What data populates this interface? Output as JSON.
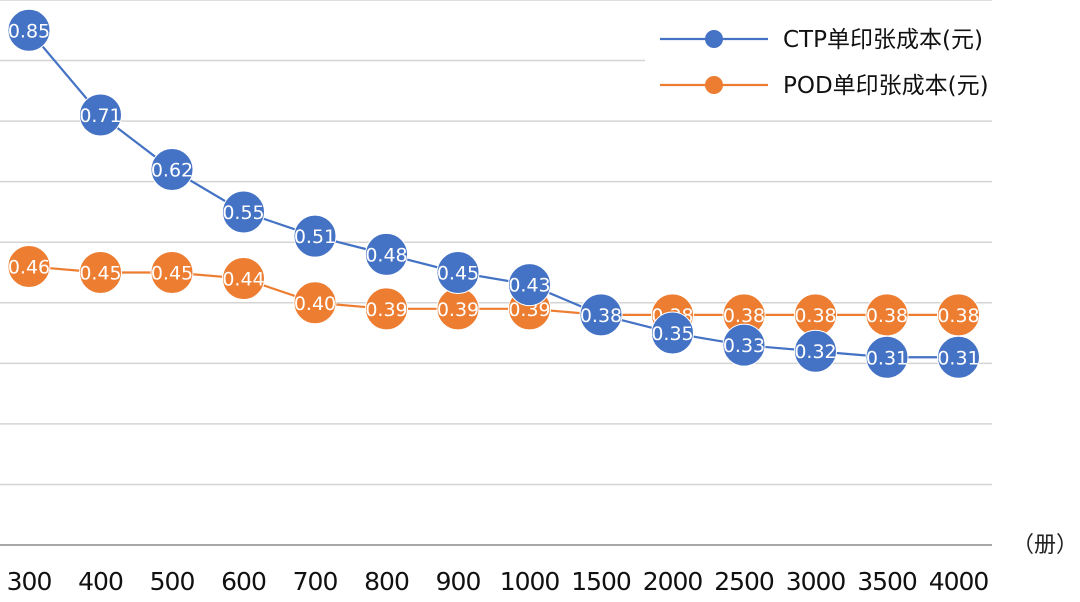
{
  "chart_data": {
    "type": "line",
    "categories": [
      "300",
      "400",
      "500",
      "600",
      "700",
      "800",
      "900",
      "1000",
      "1500",
      "2000",
      "2500",
      "3000",
      "3500",
      "4000"
    ],
    "series": [
      {
        "name": "CTP单印张成本(元)",
        "color": "#4472C4",
        "values": [
          0.85,
          0.71,
          0.62,
          0.55,
          0.51,
          0.48,
          0.45,
          0.43,
          0.38,
          0.35,
          0.33,
          0.32,
          0.31,
          0.31
        ]
      },
      {
        "name": "POD单印张成本(元)",
        "color": "#ED7D31",
        "values": [
          0.46,
          0.45,
          0.45,
          0.44,
          0.4,
          0.39,
          0.39,
          0.39,
          0.38,
          0.38,
          0.38,
          0.38,
          0.38,
          0.38
        ]
      }
    ],
    "unit_label": "（册）",
    "ylim": [
      0,
      0.9
    ],
    "grid": "horizontal",
    "legend": "top-right",
    "data_labels": true
  }
}
